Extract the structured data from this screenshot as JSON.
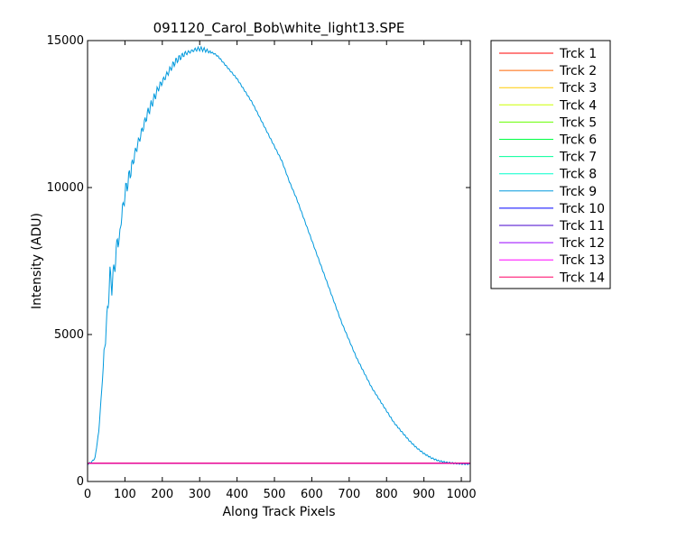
{
  "chart_data": {
    "type": "line",
    "title": "091120_Carol_Bob\\white_light13.SPE",
    "xlabel": "Along Track Pixels",
    "ylabel": "Intensity (ADU)",
    "xlim": [
      0,
      1024
    ],
    "ylim": [
      0,
      15000
    ],
    "xticks": [
      0,
      100,
      200,
      300,
      400,
      500,
      600,
      700,
      800,
      900,
      1000
    ],
    "yticks": [
      0,
      5000,
      10000,
      15000
    ],
    "grid": false,
    "legend_position": "outside-right",
    "baseline_value": 620,
    "series": [
      {
        "name": "Trck 1",
        "color": "#ff0000"
      },
      {
        "name": "Trck 2",
        "color": "#ff6600"
      },
      {
        "name": "Trck 3",
        "color": "#ffcc00"
      },
      {
        "name": "Trck 4",
        "color": "#ccff00"
      },
      {
        "name": "Trck 5",
        "color": "#66ff00"
      },
      {
        "name": "Trck 6",
        "color": "#00ff44"
      },
      {
        "name": "Trck 7",
        "color": "#00ff99"
      },
      {
        "name": "Trck 8",
        "color": "#00ffcc"
      },
      {
        "name": "Trck 9",
        "color": "#0099dd",
        "x": [
          0,
          10,
          20,
          30,
          40,
          50,
          55,
          60,
          65,
          70,
          75,
          80,
          85,
          90,
          95,
          100,
          110,
          120,
          130,
          140,
          150,
          160,
          170,
          180,
          190,
          200,
          210,
          220,
          230,
          240,
          250,
          260,
          270,
          280,
          290,
          300,
          310,
          320,
          330,
          340,
          350,
          360,
          370,
          380,
          390,
          400,
          420,
          440,
          460,
          480,
          500,
          520,
          540,
          560,
          580,
          600,
          620,
          640,
          660,
          680,
          700,
          720,
          740,
          760,
          780,
          800,
          820,
          840,
          860,
          880,
          900,
          920,
          940,
          960,
          980,
          1000,
          1024
        ],
        "y": [
          600,
          650,
          800,
          1700,
          3500,
          5300,
          6000,
          7100,
          6600,
          7200,
          7500,
          8300,
          8100,
          9000,
          9300,
          9800,
          10300,
          10800,
          11300,
          11700,
          12100,
          12500,
          12800,
          13100,
          13400,
          13600,
          13800,
          14000,
          14200,
          14350,
          14450,
          14550,
          14600,
          14650,
          14700,
          14720,
          14700,
          14650,
          14600,
          14550,
          14450,
          14300,
          14150,
          14000,
          13850,
          13700,
          13300,
          12900,
          12400,
          11900,
          11400,
          10900,
          10200,
          9600,
          8900,
          8200,
          7500,
          6800,
          6100,
          5400,
          4800,
          4200,
          3700,
          3200,
          2800,
          2400,
          2000,
          1700,
          1400,
          1150,
          950,
          800,
          700,
          650,
          620,
          600,
          590
        ]
      },
      {
        "name": "Trck 10",
        "color": "#0000ff"
      },
      {
        "name": "Trck 11",
        "color": "#4400cc"
      },
      {
        "name": "Trck 12",
        "color": "#9900ff"
      },
      {
        "name": "Trck 13",
        "color": "#ff00ff"
      },
      {
        "name": "Trck 14",
        "color": "#ff0066"
      }
    ]
  }
}
